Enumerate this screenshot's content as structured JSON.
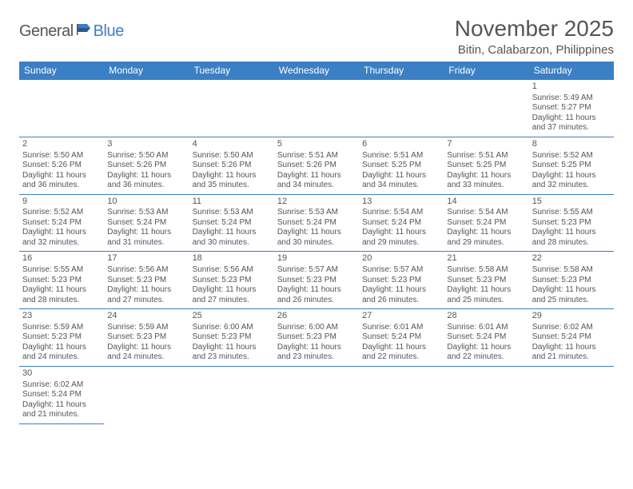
{
  "logo": {
    "part1": "General",
    "part2": "Blue"
  },
  "title": "November 2025",
  "location": "Bitin, Calabarzon, Philippines",
  "weekdays": [
    "Sunday",
    "Monday",
    "Tuesday",
    "Wednesday",
    "Thursday",
    "Friday",
    "Saturday"
  ],
  "colors": {
    "header_bg": "#3b7fc4",
    "header_text": "#ffffff",
    "border": "#3b7fc4",
    "text": "#555555",
    "logo_accent": "#3b7fc4"
  },
  "days": [
    null,
    null,
    null,
    null,
    null,
    null,
    {
      "n": "1",
      "sr": "5:49 AM",
      "ss": "5:27 PM",
      "dl": "11 hours and 37 minutes."
    },
    {
      "n": "2",
      "sr": "5:50 AM",
      "ss": "5:26 PM",
      "dl": "11 hours and 36 minutes."
    },
    {
      "n": "3",
      "sr": "5:50 AM",
      "ss": "5:26 PM",
      "dl": "11 hours and 36 minutes."
    },
    {
      "n": "4",
      "sr": "5:50 AM",
      "ss": "5:26 PM",
      "dl": "11 hours and 35 minutes."
    },
    {
      "n": "5",
      "sr": "5:51 AM",
      "ss": "5:26 PM",
      "dl": "11 hours and 34 minutes."
    },
    {
      "n": "6",
      "sr": "5:51 AM",
      "ss": "5:25 PM",
      "dl": "11 hours and 34 minutes."
    },
    {
      "n": "7",
      "sr": "5:51 AM",
      "ss": "5:25 PM",
      "dl": "11 hours and 33 minutes."
    },
    {
      "n": "8",
      "sr": "5:52 AM",
      "ss": "5:25 PM",
      "dl": "11 hours and 32 minutes."
    },
    {
      "n": "9",
      "sr": "5:52 AM",
      "ss": "5:24 PM",
      "dl": "11 hours and 32 minutes."
    },
    {
      "n": "10",
      "sr": "5:53 AM",
      "ss": "5:24 PM",
      "dl": "11 hours and 31 minutes."
    },
    {
      "n": "11",
      "sr": "5:53 AM",
      "ss": "5:24 PM",
      "dl": "11 hours and 30 minutes."
    },
    {
      "n": "12",
      "sr": "5:53 AM",
      "ss": "5:24 PM",
      "dl": "11 hours and 30 minutes."
    },
    {
      "n": "13",
      "sr": "5:54 AM",
      "ss": "5:24 PM",
      "dl": "11 hours and 29 minutes."
    },
    {
      "n": "14",
      "sr": "5:54 AM",
      "ss": "5:24 PM",
      "dl": "11 hours and 29 minutes."
    },
    {
      "n": "15",
      "sr": "5:55 AM",
      "ss": "5:23 PM",
      "dl": "11 hours and 28 minutes."
    },
    {
      "n": "16",
      "sr": "5:55 AM",
      "ss": "5:23 PM",
      "dl": "11 hours and 28 minutes."
    },
    {
      "n": "17",
      "sr": "5:56 AM",
      "ss": "5:23 PM",
      "dl": "11 hours and 27 minutes."
    },
    {
      "n": "18",
      "sr": "5:56 AM",
      "ss": "5:23 PM",
      "dl": "11 hours and 27 minutes."
    },
    {
      "n": "19",
      "sr": "5:57 AM",
      "ss": "5:23 PM",
      "dl": "11 hours and 26 minutes."
    },
    {
      "n": "20",
      "sr": "5:57 AM",
      "ss": "5:23 PM",
      "dl": "11 hours and 26 minutes."
    },
    {
      "n": "21",
      "sr": "5:58 AM",
      "ss": "5:23 PM",
      "dl": "11 hours and 25 minutes."
    },
    {
      "n": "22",
      "sr": "5:58 AM",
      "ss": "5:23 PM",
      "dl": "11 hours and 25 minutes."
    },
    {
      "n": "23",
      "sr": "5:59 AM",
      "ss": "5:23 PM",
      "dl": "11 hours and 24 minutes."
    },
    {
      "n": "24",
      "sr": "5:59 AM",
      "ss": "5:23 PM",
      "dl": "11 hours and 24 minutes."
    },
    {
      "n": "25",
      "sr": "6:00 AM",
      "ss": "5:23 PM",
      "dl": "11 hours and 23 minutes."
    },
    {
      "n": "26",
      "sr": "6:00 AM",
      "ss": "5:23 PM",
      "dl": "11 hours and 23 minutes."
    },
    {
      "n": "27",
      "sr": "6:01 AM",
      "ss": "5:24 PM",
      "dl": "11 hours and 22 minutes."
    },
    {
      "n": "28",
      "sr": "6:01 AM",
      "ss": "5:24 PM",
      "dl": "11 hours and 22 minutes."
    },
    {
      "n": "29",
      "sr": "6:02 AM",
      "ss": "5:24 PM",
      "dl": "11 hours and 21 minutes."
    },
    {
      "n": "30",
      "sr": "6:02 AM",
      "ss": "5:24 PM",
      "dl": "11 hours and 21 minutes."
    },
    null,
    null,
    null,
    null,
    null,
    null
  ],
  "labels": {
    "sunrise": "Sunrise: ",
    "sunset": "Sunset: ",
    "daylight": "Daylight: "
  }
}
